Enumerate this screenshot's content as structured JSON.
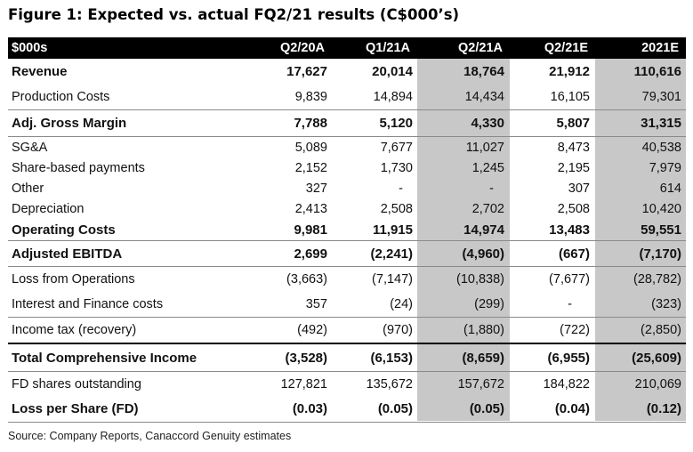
{
  "title": "Figure 1: Expected vs. actual FQ2/21 results (C$000’s)",
  "header": {
    "label": "$000s",
    "columns": [
      "Q2/20A",
      "Q1/21A",
      "Q2/21A",
      "Q2/21E",
      "2021E"
    ]
  },
  "rows": [
    {
      "label": "Revenue",
      "values": [
        "17,627",
        "20,014",
        "18,764",
        "21,912",
        "110,616"
      ]
    },
    {
      "label": "Production Costs",
      "values": [
        "9,839",
        "14,894",
        "14,434",
        "16,105",
        "79,301"
      ]
    },
    {
      "label": "Adj. Gross Margin",
      "values": [
        "7,788",
        "5,120",
        "4,330",
        "5,807",
        "31,315"
      ]
    },
    {
      "label": "SG&A",
      "values": [
        "5,089",
        "7,677",
        "11,027",
        "8,473",
        "40,538"
      ]
    },
    {
      "label": "Share-based payments",
      "values": [
        "2,152",
        "1,730",
        "1,245",
        "2,195",
        "7,979"
      ]
    },
    {
      "label": "Other",
      "values": [
        "327",
        "-",
        "-",
        "307",
        "614"
      ]
    },
    {
      "label": "Depreciation",
      "values": [
        "2,413",
        "2,508",
        "2,702",
        "2,508",
        "10,420"
      ]
    },
    {
      "label": "Operating Costs",
      "values": [
        "9,981",
        "11,915",
        "14,974",
        "13,483",
        "59,551"
      ]
    },
    {
      "label": "Adjusted EBITDA",
      "values": [
        "2,699",
        "(2,241)",
        "(4,960)",
        "(667)",
        "(7,170)"
      ]
    },
    {
      "label": "Loss from Operations",
      "values": [
        "(3,663)",
        "(7,147)",
        "(10,838)",
        "(7,677)",
        "(28,782)"
      ]
    },
    {
      "label": "Interest and Finance costs",
      "values": [
        "357",
        "(24)",
        "(299)",
        "-",
        "(323)"
      ]
    },
    {
      "label": "Income tax (recovery)",
      "values": [
        "(492)",
        "(970)",
        "(1,880)",
        "(722)",
        "(2,850)"
      ]
    },
    {
      "label": "Total Comprehensive Income",
      "values": [
        "(3,528)",
        "(6,153)",
        "(8,659)",
        "(6,955)",
        "(25,609)"
      ]
    },
    {
      "label": "FD shares outstanding",
      "values": [
        "127,821",
        "135,672",
        "157,672",
        "184,822",
        "210,069"
      ]
    },
    {
      "label": "Loss per Share (FD)",
      "values": [
        "(0.03)",
        "(0.05)",
        "(0.05)",
        "(0.04)",
        "(0.12)"
      ]
    }
  ],
  "source": "Source: Company Reports, Canaccord Genuity estimates",
  "colors": {
    "header_bg": "#000000",
    "header_text": "#ffffff",
    "highlight_col": "#c8c8c8",
    "rule": "#8a8a8a"
  }
}
